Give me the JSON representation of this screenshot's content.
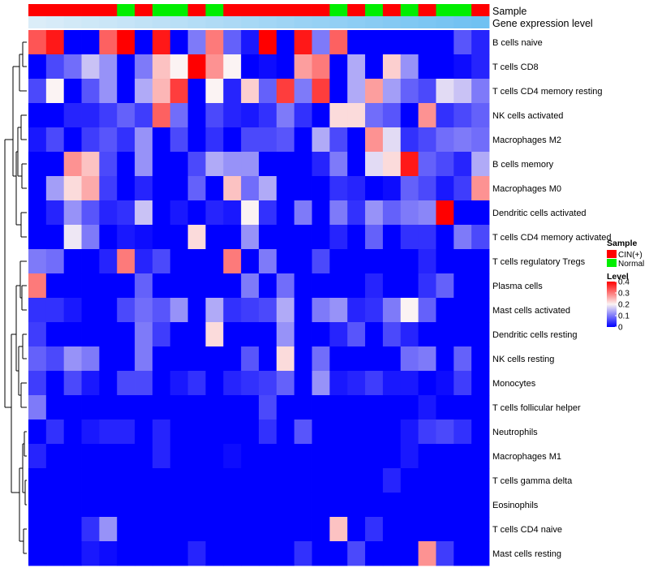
{
  "chart_data": {
    "type": "heatmap",
    "row_labels": [
      "B cells naive",
      "T cells CD8",
      "T cells CD4 memory resting",
      "NK cells activated",
      "Macrophages M2",
      "B cells memory",
      "Macrophages M0",
      "Dendritic cells activated",
      "T cells CD4 memory activated",
      "T cells regulatory  Tregs",
      "Plasma cells",
      "Mast cells activated",
      "Dendritic cells resting",
      "NK cells resting",
      "Monocytes",
      "T cells follicular helper",
      "Neutrophils",
      "Macrophages M1",
      "T cells gamma delta",
      "Eosinophils",
      "T cells CD4 naive",
      "Mast cells resting"
    ],
    "annotation_tracks": [
      {
        "name": "Sample",
        "values": [
          "CIN(+)",
          "CIN(+)",
          "CIN(+)",
          "CIN(+)",
          "CIN(+)",
          "Normal",
          "CIN(+)",
          "Normal",
          "Normal",
          "CIN(+)",
          "Normal",
          "CIN(+)",
          "CIN(+)",
          "CIN(+)",
          "CIN(+)",
          "CIN(+)",
          "CIN(+)",
          "Normal",
          "CIN(+)",
          "Normal",
          "CIN(+)",
          "Normal",
          "CIN(+)",
          "Normal",
          "Normal",
          "CIN(+)"
        ]
      },
      {
        "name": "Gene expression level",
        "values": [
          0.02,
          0.05,
          0.08,
          0.11,
          0.14,
          0.17,
          0.2,
          0.23,
          0.26,
          0.29,
          0.32,
          0.35,
          0.38,
          0.41,
          0.44,
          0.47,
          0.5,
          0.53,
          0.56,
          0.59,
          0.62,
          0.65,
          0.68,
          0.71,
          0.74,
          0.77
        ],
        "low_color": "#deeef8",
        "high_color": "#4eb3f0"
      }
    ],
    "values": [
      [
        0.33,
        0.38,
        0.0,
        0.0,
        0.32,
        0.4,
        0.0,
        0.38,
        0.0,
        0.1,
        0.3,
        0.08,
        0.02,
        0.4,
        0.0,
        0.38,
        0.1,
        0.32,
        0.0,
        0.0,
        0.0,
        0.0,
        0.0,
        0.0,
        0.07,
        0.03
      ],
      [
        0.0,
        0.06,
        0.09,
        0.16,
        0.12,
        0.0,
        0.1,
        0.24,
        0.2,
        0.4,
        0.28,
        0.2,
        0.0,
        0.01,
        0.0,
        0.27,
        0.3,
        0.0,
        0.14,
        0.0,
        0.23,
        0.12,
        0.0,
        0.0,
        0.01,
        0.03
      ],
      [
        0.06,
        0.2,
        0.0,
        0.07,
        0.12,
        0.0,
        0.14,
        0.25,
        0.35,
        0.0,
        0.2,
        0.03,
        0.23,
        0.08,
        0.35,
        0.1,
        0.35,
        0.0,
        0.14,
        0.27,
        0.13,
        0.08,
        0.06,
        0.18,
        0.16,
        0.1
      ],
      [
        0.0,
        0.0,
        0.03,
        0.03,
        0.05,
        0.08,
        0.05,
        0.32,
        0.09,
        0.0,
        0.06,
        0.03,
        0.02,
        0.04,
        0.1,
        0.04,
        0.0,
        0.22,
        0.22,
        0.09,
        0.07,
        0.0,
        0.28,
        0.04,
        0.06,
        0.08
      ],
      [
        0.02,
        0.06,
        0.0,
        0.05,
        0.07,
        0.04,
        0.12,
        0.0,
        0.06,
        0.0,
        0.04,
        0.0,
        0.06,
        0.06,
        0.07,
        0.0,
        0.14,
        0.06,
        0.0,
        0.28,
        0.18,
        0.04,
        0.06,
        0.09,
        0.1,
        0.09
      ],
      [
        0.0,
        0.0,
        0.28,
        0.24,
        0.06,
        0.0,
        0.12,
        0.0,
        0.0,
        0.06,
        0.14,
        0.12,
        0.12,
        0.0,
        0.0,
        0.0,
        0.03,
        0.1,
        0.0,
        0.18,
        0.22,
        0.38,
        0.08,
        0.06,
        0.03,
        0.14
      ],
      [
        0.0,
        0.13,
        0.22,
        0.26,
        0.05,
        0.0,
        0.03,
        0.0,
        0.0,
        0.08,
        0.0,
        0.24,
        0.09,
        0.14,
        0.0,
        0.0,
        0.0,
        0.04,
        0.03,
        0.0,
        0.01,
        0.08,
        0.06,
        0.02,
        0.05,
        0.28
      ],
      [
        0.0,
        0.03,
        0.12,
        0.07,
        0.03,
        0.04,
        0.16,
        0.0,
        0.02,
        0.0,
        0.03,
        0.02,
        0.2,
        0.04,
        0.0,
        0.1,
        0.0,
        0.1,
        0.04,
        0.12,
        0.08,
        0.1,
        0.11,
        0.4,
        0.0,
        0.0
      ],
      [
        0.0,
        0.0,
        0.19,
        0.1,
        0.0,
        0.02,
        0.01,
        0.0,
        0.0,
        0.22,
        0.0,
        0.0,
        0.12,
        0.0,
        0.0,
        0.0,
        0.0,
        0.03,
        0.0,
        0.08,
        0.0,
        0.04,
        0.04,
        0.0,
        0.1,
        0.06
      ],
      [
        0.1,
        0.09,
        0.0,
        0.0,
        0.03,
        0.3,
        0.03,
        0.06,
        0.0,
        0.0,
        0.0,
        0.3,
        0.0,
        0.1,
        0.0,
        0.0,
        0.06,
        0.0,
        0.0,
        0.0,
        0.0,
        0.0,
        0.03,
        0.0,
        0.0,
        0.0
      ],
      [
        0.3,
        0.0,
        0.0,
        0.0,
        0.0,
        0.0,
        0.08,
        0.0,
        0.0,
        0.0,
        0.0,
        0.0,
        0.1,
        0.0,
        0.09,
        0.0,
        0.0,
        0.0,
        0.0,
        0.03,
        0.0,
        0.0,
        0.04,
        0.08,
        0.0,
        0.0
      ],
      [
        0.04,
        0.04,
        0.02,
        0.0,
        0.0,
        0.06,
        0.09,
        0.07,
        0.12,
        0.0,
        0.14,
        0.04,
        0.05,
        0.06,
        0.14,
        0.0,
        0.1,
        0.12,
        0.03,
        0.04,
        0.1,
        0.2,
        0.08,
        0.0,
        0.0,
        0.0
      ],
      [
        0.05,
        0.0,
        0.0,
        0.0,
        0.0,
        0.0,
        0.1,
        0.05,
        0.0,
        0.0,
        0.22,
        0.0,
        0.0,
        0.0,
        0.12,
        0.0,
        0.0,
        0.03,
        0.07,
        0.0,
        0.06,
        0.03,
        0.0,
        0.0,
        0.0,
        0.0
      ],
      [
        0.08,
        0.06,
        0.12,
        0.1,
        0.0,
        0.0,
        0.1,
        0.0,
        0.0,
        0.0,
        0.0,
        0.0,
        0.07,
        0.0,
        0.22,
        0.0,
        0.09,
        0.0,
        0.0,
        0.0,
        0.0,
        0.09,
        0.1,
        0.0,
        0.08,
        0.0
      ],
      [
        0.05,
        0.0,
        0.06,
        0.02,
        0.0,
        0.06,
        0.06,
        0.0,
        0.02,
        0.04,
        0.0,
        0.03,
        0.04,
        0.05,
        0.08,
        0.0,
        0.12,
        0.02,
        0.03,
        0.05,
        0.02,
        0.02,
        0.0,
        0.01,
        0.05,
        0.0
      ],
      [
        0.1,
        0.0,
        0.0,
        0.0,
        0.0,
        0.0,
        0.0,
        0.0,
        0.0,
        0.0,
        0.0,
        0.0,
        0.0,
        0.06,
        0.0,
        0.0,
        0.0,
        0.0,
        0.0,
        0.0,
        0.0,
        0.0,
        0.02,
        0.0,
        0.0,
        0.0
      ],
      [
        0.0,
        0.04,
        0.0,
        0.02,
        0.03,
        0.03,
        0.0,
        0.03,
        0.0,
        0.0,
        0.0,
        0.0,
        0.0,
        0.04,
        0.0,
        0.07,
        0.0,
        0.0,
        0.0,
        0.0,
        0.0,
        0.02,
        0.05,
        0.06,
        0.04,
        0.0
      ],
      [
        0.03,
        0.0,
        0.0,
        0.0,
        0.0,
        0.0,
        0.0,
        0.03,
        0.0,
        0.0,
        0.0,
        0.01,
        0.0,
        0.0,
        0.0,
        0.0,
        0.0,
        0.0,
        0.0,
        0.0,
        0.0,
        0.02,
        0.0,
        0.0,
        0.0,
        0.0
      ],
      [
        0.0,
        0.0,
        0.0,
        0.0,
        0.0,
        0.0,
        0.0,
        0.0,
        0.0,
        0.0,
        0.0,
        0.0,
        0.0,
        0.0,
        0.0,
        0.0,
        0.0,
        0.0,
        0.0,
        0.0,
        0.03,
        0.0,
        0.0,
        0.0,
        0.0,
        0.0
      ],
      [
        0.0,
        0.0,
        0.0,
        0.0,
        0.0,
        0.0,
        0.0,
        0.0,
        0.0,
        0.0,
        0.0,
        0.0,
        0.0,
        0.0,
        0.0,
        0.0,
        0.0,
        0.0,
        0.0,
        0.0,
        0.0,
        0.0,
        0.0,
        0.0,
        0.0,
        0.0
      ],
      [
        0.0,
        0.0,
        0.0,
        0.04,
        0.12,
        0.0,
        0.0,
        0.0,
        0.0,
        0.0,
        0.0,
        0.0,
        0.0,
        0.0,
        0.0,
        0.0,
        0.0,
        0.24,
        0.0,
        0.04,
        0.0,
        0.0,
        0.0,
        0.0,
        0.0,
        0.0
      ],
      [
        0.0,
        0.0,
        0.0,
        0.02,
        0.01,
        0.0,
        0.0,
        0.0,
        0.0,
        0.03,
        0.0,
        0.0,
        0.0,
        0.0,
        0.0,
        0.04,
        0.0,
        0.0,
        0.06,
        0.0,
        0.0,
        0.0,
        0.28,
        0.05,
        0.0,
        0.0
      ]
    ],
    "color_scale": {
      "min": 0,
      "max": 0.4,
      "stops": [
        {
          "value": 0,
          "color": "#0000ff"
        },
        {
          "value": 0.2,
          "color": "#fbf3f3"
        },
        {
          "value": 0.4,
          "color": "#ff0000"
        }
      ]
    },
    "legend": {
      "sample": {
        "title": "Sample",
        "items": [
          {
            "label": "CIN(+)",
            "color": "#ff0000"
          },
          {
            "label": "Normal",
            "color": "#00ee00"
          }
        ]
      },
      "level": {
        "title": "Level",
        "ticks": [
          {
            "value": 0.4,
            "label": "0.4"
          },
          {
            "value": 0.3,
            "label": "0.3"
          },
          {
            "value": 0.2,
            "label": "0.2"
          },
          {
            "value": 0.1,
            "label": "0.1"
          },
          {
            "value": 0,
            "label": "0"
          }
        ]
      }
    },
    "row_dendrogram": true,
    "column_dendrogram": false
  }
}
